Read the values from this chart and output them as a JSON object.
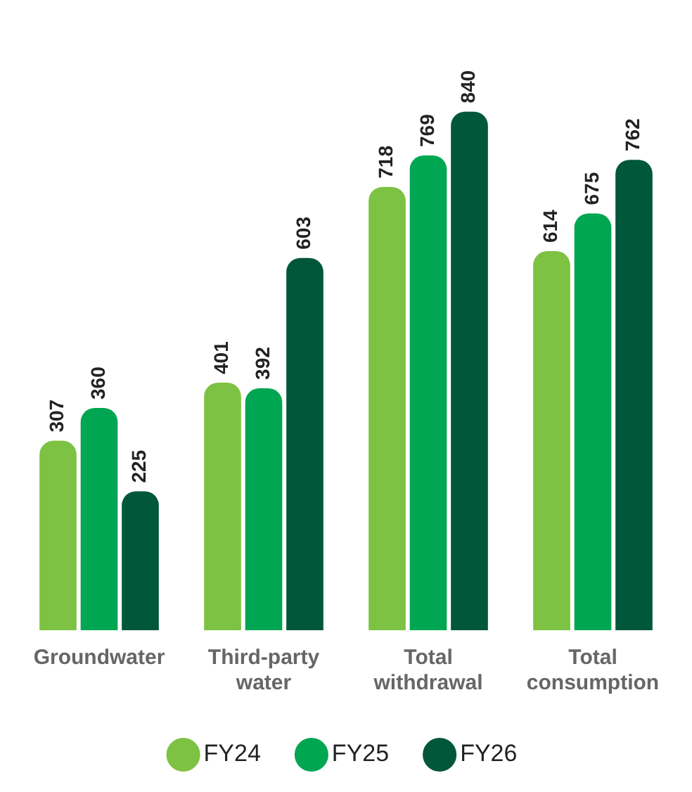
{
  "chart_data": {
    "type": "bar",
    "categories": [
      "Groundwater",
      "Third-party water",
      "Total withdrawal",
      "Total consumption"
    ],
    "series": [
      {
        "name": "FY24",
        "color": "#7dc242",
        "values": [
          307,
          401,
          718,
          614
        ]
      },
      {
        "name": "FY25",
        "color": "#00a651",
        "values": [
          360,
          392,
          769,
          675
        ]
      },
      {
        "name": "FY26",
        "color": "#00573a",
        "values": [
          225,
          603,
          840,
          762
        ]
      }
    ],
    "data_labels": true,
    "legend": "bottom",
    "grid": false,
    "tick_labels": "x"
  }
}
